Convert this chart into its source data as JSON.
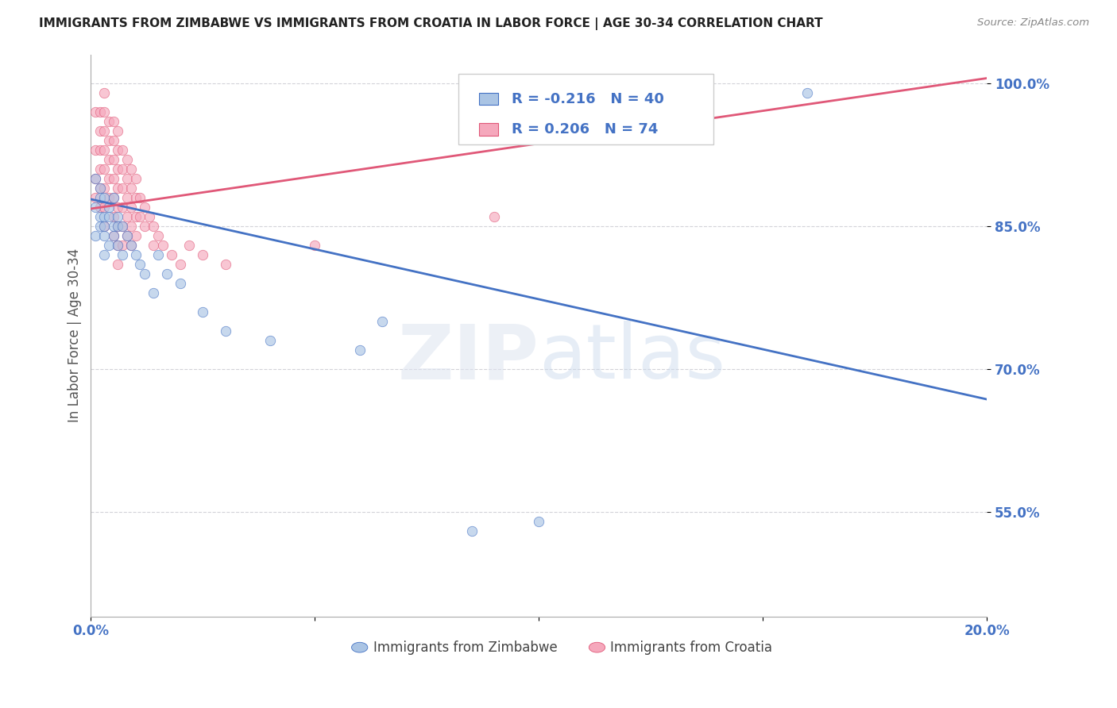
{
  "title": "IMMIGRANTS FROM ZIMBABWE VS IMMIGRANTS FROM CROATIA IN LABOR FORCE | AGE 30-34 CORRELATION CHART",
  "source": "Source: ZipAtlas.com",
  "ylabel": "In Labor Force | Age 30-34",
  "xlim": [
    0.0,
    0.2
  ],
  "ylim": [
    0.44,
    1.03
  ],
  "xtick_positions": [
    0.0,
    0.05,
    0.1,
    0.15,
    0.2
  ],
  "xticklabels": [
    "0.0%",
    "",
    "",
    "",
    "20.0%"
  ],
  "ytick_positions": [
    0.55,
    0.7,
    0.85,
    1.0
  ],
  "ytick_labels": [
    "55.0%",
    "70.0%",
    "85.0%",
    "100.0%"
  ],
  "zimbabwe_color": "#aac4e4",
  "croatia_color": "#f5a8bc",
  "trend_zimbabwe_color": "#4472c4",
  "trend_croatia_color": "#e05878",
  "legend_zimbabwe_R": "-0.216",
  "legend_zimbabwe_N": "40",
  "legend_croatia_R": "0.206",
  "legend_croatia_N": "74",
  "background_color": "#ffffff",
  "grid_color": "#c8c8d0",
  "dot_size": 80,
  "dot_alpha": 0.65,
  "trend_zim_x0": 0.0,
  "trend_zim_y0": 0.878,
  "trend_zim_x1": 0.2,
  "trend_zim_y1": 0.668,
  "trend_cro_x0": 0.0,
  "trend_cro_y0": 0.868,
  "trend_cro_x1": 0.2,
  "trend_cro_y1": 1.005,
  "zimbabwe_x": [
    0.001,
    0.001,
    0.001,
    0.002,
    0.002,
    0.002,
    0.002,
    0.003,
    0.003,
    0.003,
    0.003,
    0.003,
    0.004,
    0.004,
    0.004,
    0.005,
    0.005,
    0.005,
    0.006,
    0.006,
    0.006,
    0.007,
    0.007,
    0.008,
    0.009,
    0.01,
    0.011,
    0.012,
    0.014,
    0.015,
    0.017,
    0.02,
    0.025,
    0.03,
    0.04,
    0.06,
    0.065,
    0.085,
    0.1,
    0.16
  ],
  "zimbabwe_y": [
    0.9,
    0.87,
    0.84,
    0.88,
    0.85,
    0.86,
    0.89,
    0.84,
    0.86,
    0.88,
    0.85,
    0.82,
    0.86,
    0.87,
    0.83,
    0.85,
    0.88,
    0.84,
    0.85,
    0.86,
    0.83,
    0.85,
    0.82,
    0.84,
    0.83,
    0.82,
    0.81,
    0.8,
    0.78,
    0.82,
    0.8,
    0.79,
    0.76,
    0.74,
    0.73,
    0.72,
    0.75,
    0.53,
    0.54,
    0.99
  ],
  "croatia_x": [
    0.001,
    0.001,
    0.001,
    0.001,
    0.002,
    0.002,
    0.002,
    0.002,
    0.002,
    0.002,
    0.003,
    0.003,
    0.003,
    0.003,
    0.003,
    0.003,
    0.003,
    0.003,
    0.004,
    0.004,
    0.004,
    0.004,
    0.004,
    0.005,
    0.005,
    0.005,
    0.005,
    0.005,
    0.005,
    0.005,
    0.006,
    0.006,
    0.006,
    0.006,
    0.006,
    0.006,
    0.006,
    0.006,
    0.007,
    0.007,
    0.007,
    0.007,
    0.007,
    0.007,
    0.008,
    0.008,
    0.008,
    0.008,
    0.008,
    0.009,
    0.009,
    0.009,
    0.009,
    0.009,
    0.01,
    0.01,
    0.01,
    0.01,
    0.011,
    0.011,
    0.012,
    0.012,
    0.013,
    0.014,
    0.014,
    0.015,
    0.016,
    0.018,
    0.02,
    0.022,
    0.025,
    0.03,
    0.05,
    0.09
  ],
  "croatia_y": [
    0.97,
    0.93,
    0.9,
    0.88,
    0.97,
    0.95,
    0.93,
    0.91,
    0.89,
    0.87,
    0.99,
    0.97,
    0.95,
    0.93,
    0.91,
    0.89,
    0.87,
    0.85,
    0.96,
    0.94,
    0.92,
    0.9,
    0.88,
    0.96,
    0.94,
    0.92,
    0.9,
    0.88,
    0.86,
    0.84,
    0.95,
    0.93,
    0.91,
    0.89,
    0.87,
    0.85,
    0.83,
    0.81,
    0.93,
    0.91,
    0.89,
    0.87,
    0.85,
    0.83,
    0.92,
    0.9,
    0.88,
    0.86,
    0.84,
    0.91,
    0.89,
    0.87,
    0.85,
    0.83,
    0.9,
    0.88,
    0.86,
    0.84,
    0.88,
    0.86,
    0.87,
    0.85,
    0.86,
    0.85,
    0.83,
    0.84,
    0.83,
    0.82,
    0.81,
    0.83,
    0.82,
    0.81,
    0.83,
    0.86
  ]
}
